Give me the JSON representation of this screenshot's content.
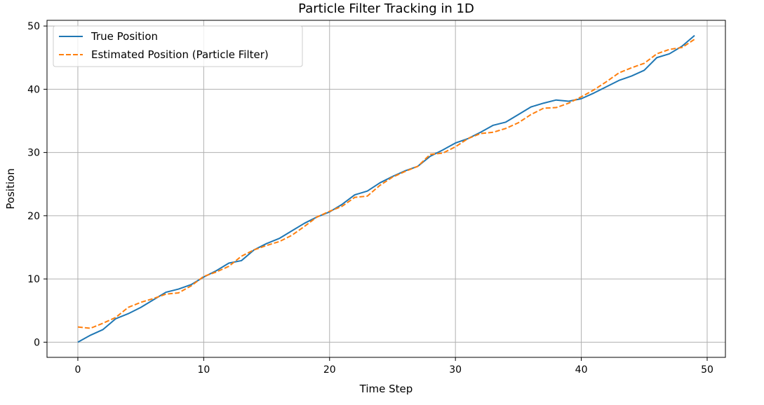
{
  "chart_data": {
    "type": "line",
    "title": "Particle Filter Tracking in 1D",
    "xlabel": "Time Step",
    "ylabel": "Position",
    "xlim": [
      -2.45,
      51.45
    ],
    "ylim": [
      -2.4,
      50.9
    ],
    "xticks": [
      0,
      10,
      20,
      30,
      40,
      50
    ],
    "yticks": [
      0,
      10,
      20,
      30,
      40,
      50
    ],
    "grid": true,
    "legend_position": "top-left",
    "x": [
      0,
      1,
      2,
      3,
      4,
      5,
      6,
      7,
      8,
      9,
      10,
      11,
      12,
      13,
      14,
      15,
      16,
      17,
      18,
      19,
      20,
      21,
      22,
      23,
      24,
      25,
      26,
      27,
      28,
      29,
      30,
      31,
      32,
      33,
      34,
      35,
      36,
      37,
      38,
      39,
      40,
      41,
      42,
      43,
      44,
      45,
      46,
      47,
      48,
      49
    ],
    "series": [
      {
        "name": "True Position",
        "color": "#1f77b4",
        "style": "solid",
        "values": [
          0.0,
          1.1,
          2.0,
          3.7,
          4.5,
          5.5,
          6.7,
          7.9,
          8.4,
          9.1,
          10.3,
          11.3,
          12.5,
          12.9,
          14.6,
          15.6,
          16.4,
          17.6,
          18.8,
          19.8,
          20.6,
          21.8,
          23.3,
          23.9,
          25.2,
          26.2,
          27.1,
          27.8,
          29.4,
          30.4,
          31.5,
          32.2,
          33.2,
          34.3,
          34.8,
          36.0,
          37.2,
          37.8,
          38.3,
          38.1,
          38.5,
          39.4,
          40.4,
          41.4,
          42.1,
          43.0,
          45.0,
          45.6,
          46.8,
          48.5
        ]
      },
      {
        "name": "Estimated Position (Particle Filter)",
        "color": "#ff7f0e",
        "style": "dashed",
        "values": [
          2.4,
          2.2,
          3.0,
          3.9,
          5.5,
          6.3,
          6.9,
          7.6,
          7.8,
          8.9,
          10.4,
          11.1,
          12.0,
          13.6,
          14.6,
          15.3,
          15.9,
          16.9,
          18.3,
          19.8,
          20.7,
          21.5,
          22.9,
          23.1,
          24.8,
          26.1,
          27.0,
          27.8,
          29.7,
          29.9,
          30.9,
          32.2,
          33.0,
          33.2,
          33.8,
          34.7,
          36.0,
          37.0,
          37.1,
          37.8,
          38.8,
          39.9,
          41.2,
          42.6,
          43.4,
          44.1,
          45.6,
          46.3,
          46.6,
          47.9
        ]
      }
    ]
  }
}
